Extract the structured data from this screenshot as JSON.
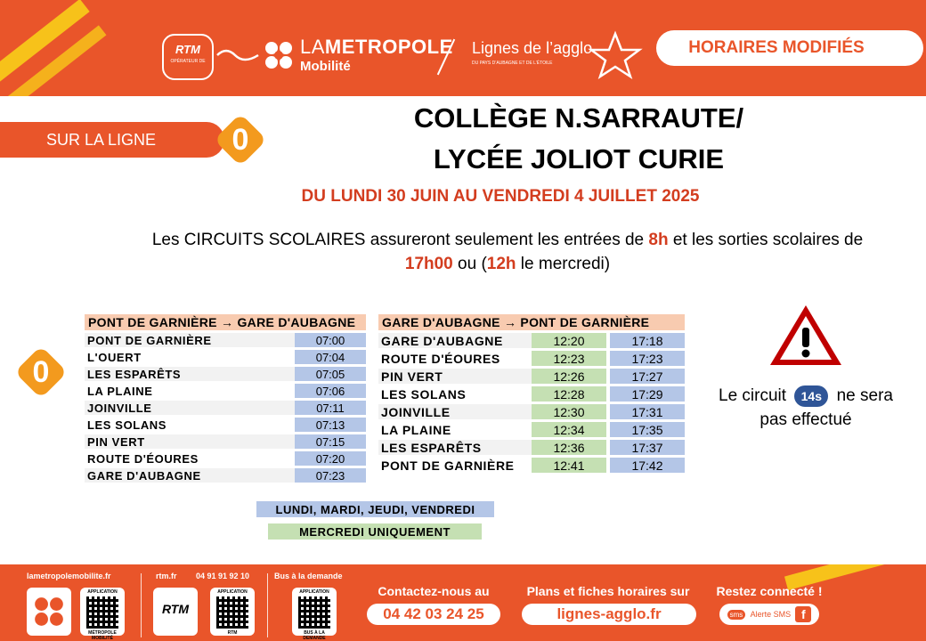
{
  "header": {
    "rtm_logo": "RTM",
    "rtm_sub": "OPÉRATEUR DE",
    "metro_title_light": "LA",
    "metro_title_bold": "METROPOLE",
    "metro_sub": "Mobilité",
    "agglo_title": "Lignes de l’agglo",
    "agglo_sub": "DU PAYS D’AUBAGNE ET DE L’ÉTOILE",
    "modified_label": "HORAIRES MODIFIÉS",
    "brand_color": "#e9552a",
    "accent_color": "#f7c21a"
  },
  "line": {
    "prefix": "SUR LA LIGNE",
    "number": "0"
  },
  "title": {
    "line1": "COLLÈGE N.SARRAUTE/",
    "line2": "LYCÉE JOLIOT CURIE"
  },
  "dates": "DU LUNDI 30 JUIN AU VENDREDI 4 JUILLET 2025",
  "notice": {
    "p1": "Les CIRCUITS SCOLAIRES assureront seulement les entrées de ",
    "h1": "8h",
    "p2": " et les sorties scolaires de ",
    "h2": "17h00",
    "p3": " ou (",
    "h3": "12h",
    "p4": " le mercredi)"
  },
  "table_outbound": {
    "header": "PONT DE GARNIÈRE → GARE D'AUBAGNE",
    "rows": [
      {
        "stop": "PONT DE GARNIÈRE",
        "time": "07:00"
      },
      {
        "stop": "L'OUERT",
        "time": "07:04"
      },
      {
        "stop": "LES ESPARÊTS",
        "time": "07:05"
      },
      {
        "stop": "LA PLAINE",
        "time": "07:06"
      },
      {
        "stop": "JOINVILLE",
        "time": "07:11"
      },
      {
        "stop": "LES SOLANS",
        "time": "07:13"
      },
      {
        "stop": "PIN VERT",
        "time": "07:15"
      },
      {
        "stop": "ROUTE D'ÉOURES",
        "time": "07:20"
      },
      {
        "stop": "GARE D'AUBAGNE",
        "time": "07:23"
      }
    ]
  },
  "table_return": {
    "header": "GARE D'AUBAGNE → PONT DE GARNIÈRE",
    "rows": [
      {
        "stop": "GARE D'AUBAGNE",
        "wed": "12:20",
        "other": "17:18"
      },
      {
        "stop": "ROUTE D'ÉOURES",
        "wed": "12:23",
        "other": "17:23"
      },
      {
        "stop": "PIN VERT",
        "wed": "12:26",
        "other": "17:27"
      },
      {
        "stop": "LES SOLANS",
        "wed": "12:28",
        "other": "17:29"
      },
      {
        "stop": "JOINVILLE",
        "wed": "12:30",
        "other": "17:31"
      },
      {
        "stop": "LA PLAINE",
        "wed": "12:34",
        "other": "17:35"
      },
      {
        "stop": "LES ESPARÊTS",
        "wed": "12:36",
        "other": "17:37"
      },
      {
        "stop": "PONT DE GARNIÈRE",
        "wed": "12:41",
        "other": "17:42"
      }
    ]
  },
  "legend": {
    "blue": "LUNDI, MARDI, JEUDI, VENDREDI",
    "green": "MERCREDI UNIQUEMENT"
  },
  "cancellation": {
    "prefix": "Le circuit",
    "circuit": "14s",
    "suffix": "ne sera pas effectué"
  },
  "footer": {
    "site1": "lametropolemobilite.fr",
    "site2": "rtm.fr",
    "phone_small": "04 91 91 92 10",
    "on_demand": "Bus à la demande",
    "app_caption": "APPLICATION",
    "box1_sub": "MÉTROPOLE MOBILITÉ",
    "box2_sub": "RTM",
    "box3_sub": "BUS À LA DEMANDE",
    "rtm_logo": "RTM",
    "contact_label": "Contactez-nous au",
    "contact_phone": "04 42 03 24 25",
    "plans_label": "Plans et fiches horaires sur",
    "plans_site": "lignes-agglo.fr",
    "connect_label": "Restez connecté !",
    "sms_label": "Alerte SMS",
    "sms_icon": "sms",
    "fb_icon": "f"
  }
}
